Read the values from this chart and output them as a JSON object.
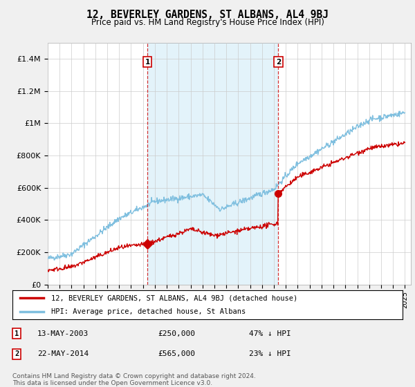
{
  "title": "12, BEVERLEY GARDENS, ST ALBANS, AL4 9BJ",
  "subtitle": "Price paid vs. HM Land Registry's House Price Index (HPI)",
  "ylabel_ticks": [
    "£0",
    "£200K",
    "£400K",
    "£600K",
    "£800K",
    "£1M",
    "£1.2M",
    "£1.4M"
  ],
  "ytick_values": [
    0,
    200000,
    400000,
    600000,
    800000,
    1000000,
    1200000,
    1400000
  ],
  "ylim": [
    0,
    1500000
  ],
  "hpi_color": "#7fbfdf",
  "hpi_fill_color": "#d8eef8",
  "price_color": "#cc0000",
  "background_color": "#f0f0f0",
  "plot_bg_color": "#ffffff",
  "grid_color": "#cccccc",
  "sale1_year": 2003.37,
  "sale1_price": 250000,
  "sale1_pct": "47%",
  "sale1_date": "13-MAY-2003",
  "sale2_year": 2014.37,
  "sale2_price": 565000,
  "sale2_pct": "23%",
  "sale2_date": "22-MAY-2014",
  "legend_label1": "12, BEVERLEY GARDENS, ST ALBANS, AL4 9BJ (detached house)",
  "legend_label2": "HPI: Average price, detached house, St Albans",
  "footnote": "Contains HM Land Registry data © Crown copyright and database right 2024.\nThis data is licensed under the Open Government Licence v3.0."
}
